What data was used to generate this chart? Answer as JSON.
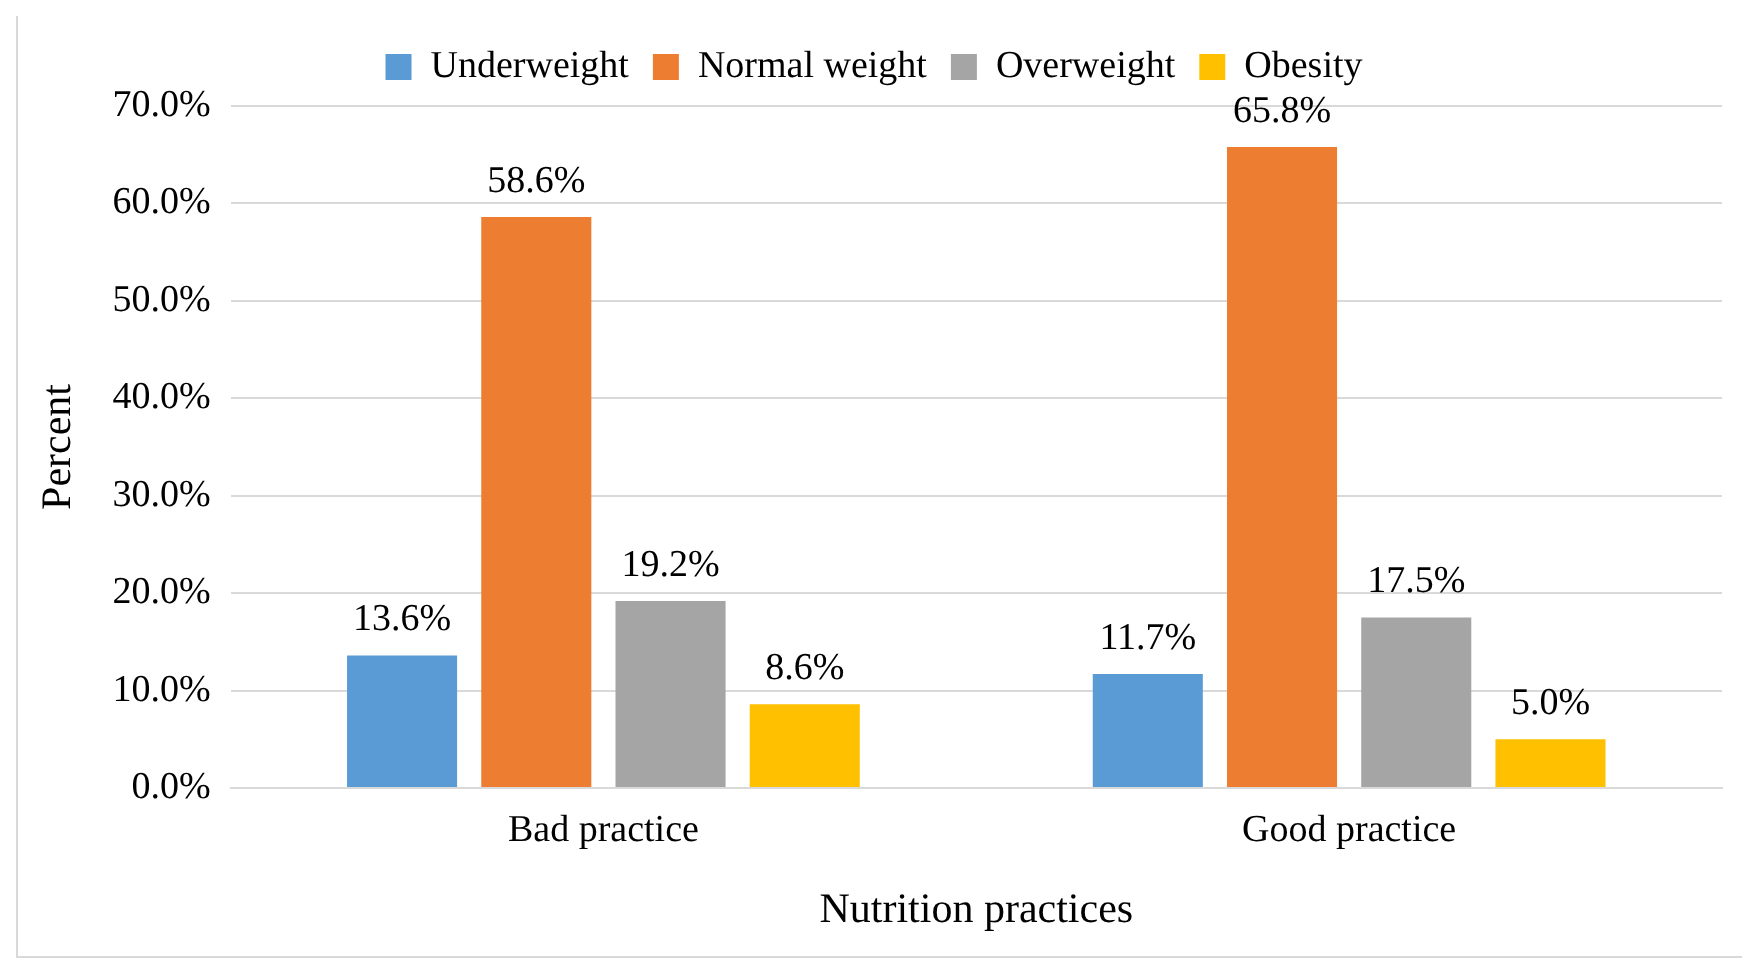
{
  "chart_data": {
    "type": "bar",
    "categories": [
      "Bad practice",
      "Good practice"
    ],
    "series": [
      {
        "name": "Underweight",
        "color": "#5b9bd5",
        "values": [
          13.6,
          11.7
        ],
        "value_labels": [
          "13.6%",
          "11.7%"
        ]
      },
      {
        "name": "Normal weight",
        "color": "#ed7d31",
        "values": [
          58.6,
          65.8
        ],
        "value_labels": [
          "58.6%",
          "65.8%"
        ]
      },
      {
        "name": "Overweight",
        "color": "#a5a5a5",
        "values": [
          19.2,
          17.5
        ],
        "value_labels": [
          "19.2%",
          "17.5%"
        ]
      },
      {
        "name": "Obesity",
        "color": "#ffc000",
        "values": [
          8.6,
          5.0
        ],
        "value_labels": [
          "8.6%",
          "5.0%"
        ]
      }
    ],
    "xlabel": "Nutrition practices",
    "ylabel": "Percent",
    "ylim": [
      0,
      70
    ],
    "yticks": [
      {
        "value": 0,
        "label": "0.0%"
      },
      {
        "value": 10,
        "label": "10.0%"
      },
      {
        "value": 20,
        "label": "20.0%"
      },
      {
        "value": 30,
        "label": "30.0%"
      },
      {
        "value": 40,
        "label": "40.0%"
      },
      {
        "value": 50,
        "label": "50.0%"
      },
      {
        "value": 60,
        "label": "60.0%"
      },
      {
        "value": 70,
        "label": "70.0%"
      }
    ],
    "grid": "y",
    "legend": "top"
  }
}
